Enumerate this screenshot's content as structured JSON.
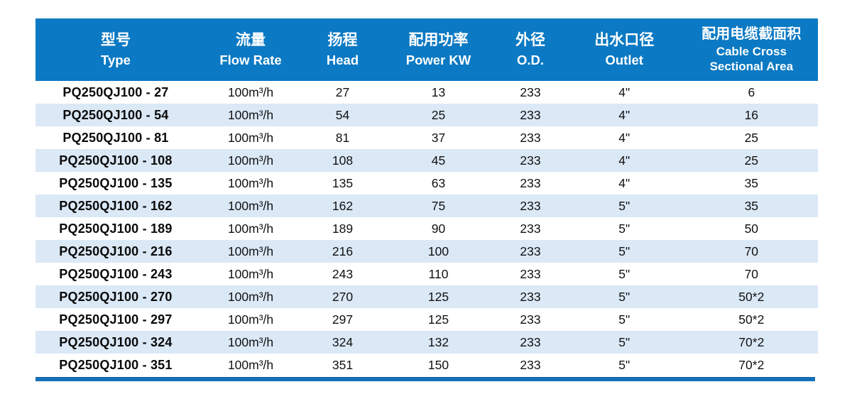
{
  "chart_data": {
    "type": "table",
    "title": "",
    "column_keys": [
      "type",
      "flow-rate",
      "head",
      "power-kw",
      "od",
      "outlet",
      "cable"
    ],
    "columns": [
      {
        "zh": "型号",
        "en": "Type"
      },
      {
        "zh": "流量",
        "en": "Flow Rate"
      },
      {
        "zh": "扬程",
        "en": "Head"
      },
      {
        "zh": "配用功率",
        "en": "Power KW"
      },
      {
        "zh": "外径",
        "en": "O.D."
      },
      {
        "zh": "出水口径",
        "en": "Outlet"
      },
      {
        "zh": "配用电缆截面积",
        "en": "Cable Cross",
        "en2": "Sectional Area"
      }
    ],
    "rows": [
      [
        "PQ250QJ100 - 27",
        "100m³/h",
        "27",
        "13",
        "233",
        "4\"",
        "6"
      ],
      [
        "PQ250QJ100 - 54",
        "100m³/h",
        "54",
        "25",
        "233",
        "4\"",
        "16"
      ],
      [
        "PQ250QJ100 - 81",
        "100m³/h",
        "81",
        "37",
        "233",
        "4\"",
        "25"
      ],
      [
        "PQ250QJ100 - 108",
        "100m³/h",
        "108",
        "45",
        "233",
        "4\"",
        "25"
      ],
      [
        "PQ250QJ100 - 135",
        "100m³/h",
        "135",
        "63",
        "233",
        "4\"",
        "35"
      ],
      [
        "PQ250QJ100 - 162",
        "100m³/h",
        "162",
        "75",
        "233",
        "5\"",
        "35"
      ],
      [
        "PQ250QJ100 - 189",
        "100m³/h",
        "189",
        "90",
        "233",
        "5\"",
        "50"
      ],
      [
        "PQ250QJ100 - 216",
        "100m³/h",
        "216",
        "100",
        "233",
        "5\"",
        "70"
      ],
      [
        "PQ250QJ100 - 243",
        "100m³/h",
        "243",
        "110",
        "233",
        "5\"",
        "70"
      ],
      [
        "PQ250QJ100 - 270",
        "100m³/h",
        "270",
        "125",
        "233",
        "5\"",
        "50*2"
      ],
      [
        "PQ250QJ100 - 297",
        "100m³/h",
        "297",
        "125",
        "233",
        "5\"",
        "50*2"
      ],
      [
        "PQ250QJ100 - 324",
        "100m³/h",
        "324",
        "132",
        "233",
        "5\"",
        "70*2"
      ],
      [
        "PQ250QJ100 - 351",
        "100m³/h",
        "351",
        "150",
        "233",
        "5\"",
        "70*2"
      ]
    ]
  },
  "colors": {
    "header_bg": "#0b79c3",
    "header_text": "#ffffff",
    "stripe": "#dbe8f6",
    "bottom_rule": "#1571ba",
    "body_text": "#111111"
  }
}
